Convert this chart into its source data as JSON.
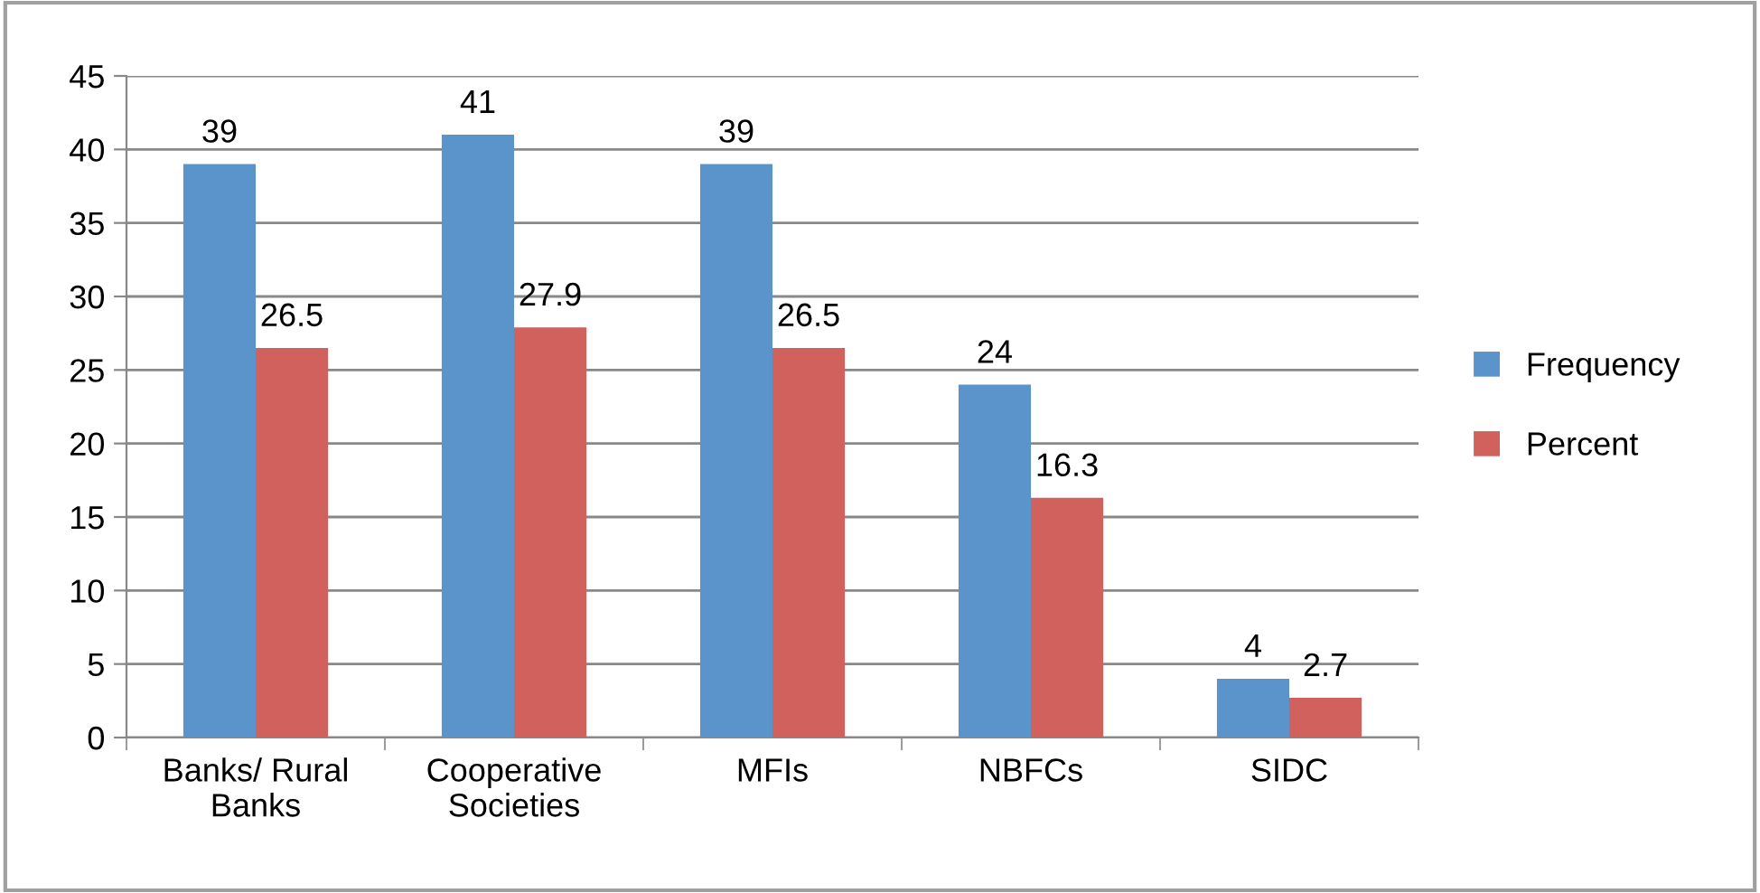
{
  "chart_data": {
    "type": "bar",
    "categories": [
      "Banks/ Rural\nBanks",
      "Cooperative\nSocieties",
      "MFIs",
      "NBFCs",
      "SIDC"
    ],
    "series": [
      {
        "name": "Frequency",
        "color": "#5b93cb",
        "values": [
          39,
          41,
          39,
          24,
          4
        ]
      },
      {
        "name": "Percent",
        "color": "#d1615d",
        "values": [
          26.5,
          27.9,
          26.5,
          16.3,
          2.7
        ]
      }
    ],
    "ylim": [
      0,
      45
    ],
    "yticks": [
      0,
      5,
      10,
      15,
      20,
      25,
      30,
      35,
      40,
      45
    ],
    "grid": "y",
    "legend": "right",
    "data_labels": true
  }
}
